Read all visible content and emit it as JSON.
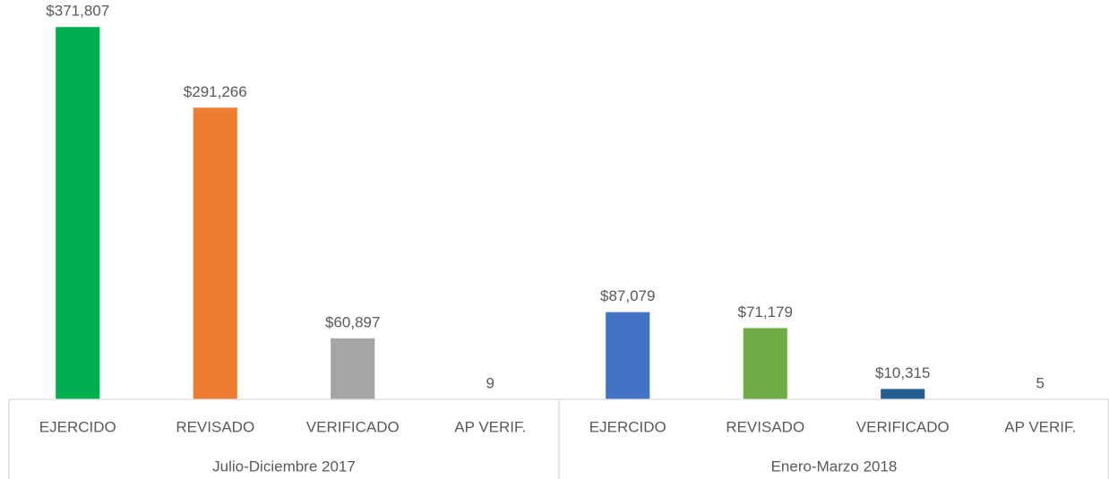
{
  "chart_data": {
    "type": "bar",
    "groups": [
      {
        "label": "Julio-Diciembre 2017",
        "categories": [
          "EJERCIDO",
          "REVISADO",
          "VERIFICADO",
          "AP VERIF."
        ],
        "values": [
          371807,
          291266,
          60897,
          9
        ],
        "value_labels": [
          "$371,807",
          "$291,266",
          "$60,897",
          "9"
        ],
        "colors": [
          "#00b050",
          "#ed7d31",
          "#a5a5a5",
          "#ffc000"
        ]
      },
      {
        "label": "Enero-Marzo 2018",
        "categories": [
          "EJERCIDO",
          "REVISADO",
          "VERIFICADO",
          "AP VERIF."
        ],
        "values": [
          87079,
          71179,
          10315,
          5
        ],
        "value_labels": [
          "$87,079",
          "$71,179",
          "$10,315",
          "5"
        ],
        "colors": [
          "#4472c4",
          "#70ad47",
          "#255e91",
          "#9e480e"
        ]
      }
    ],
    "ylim": [
      0,
      372000
    ]
  }
}
